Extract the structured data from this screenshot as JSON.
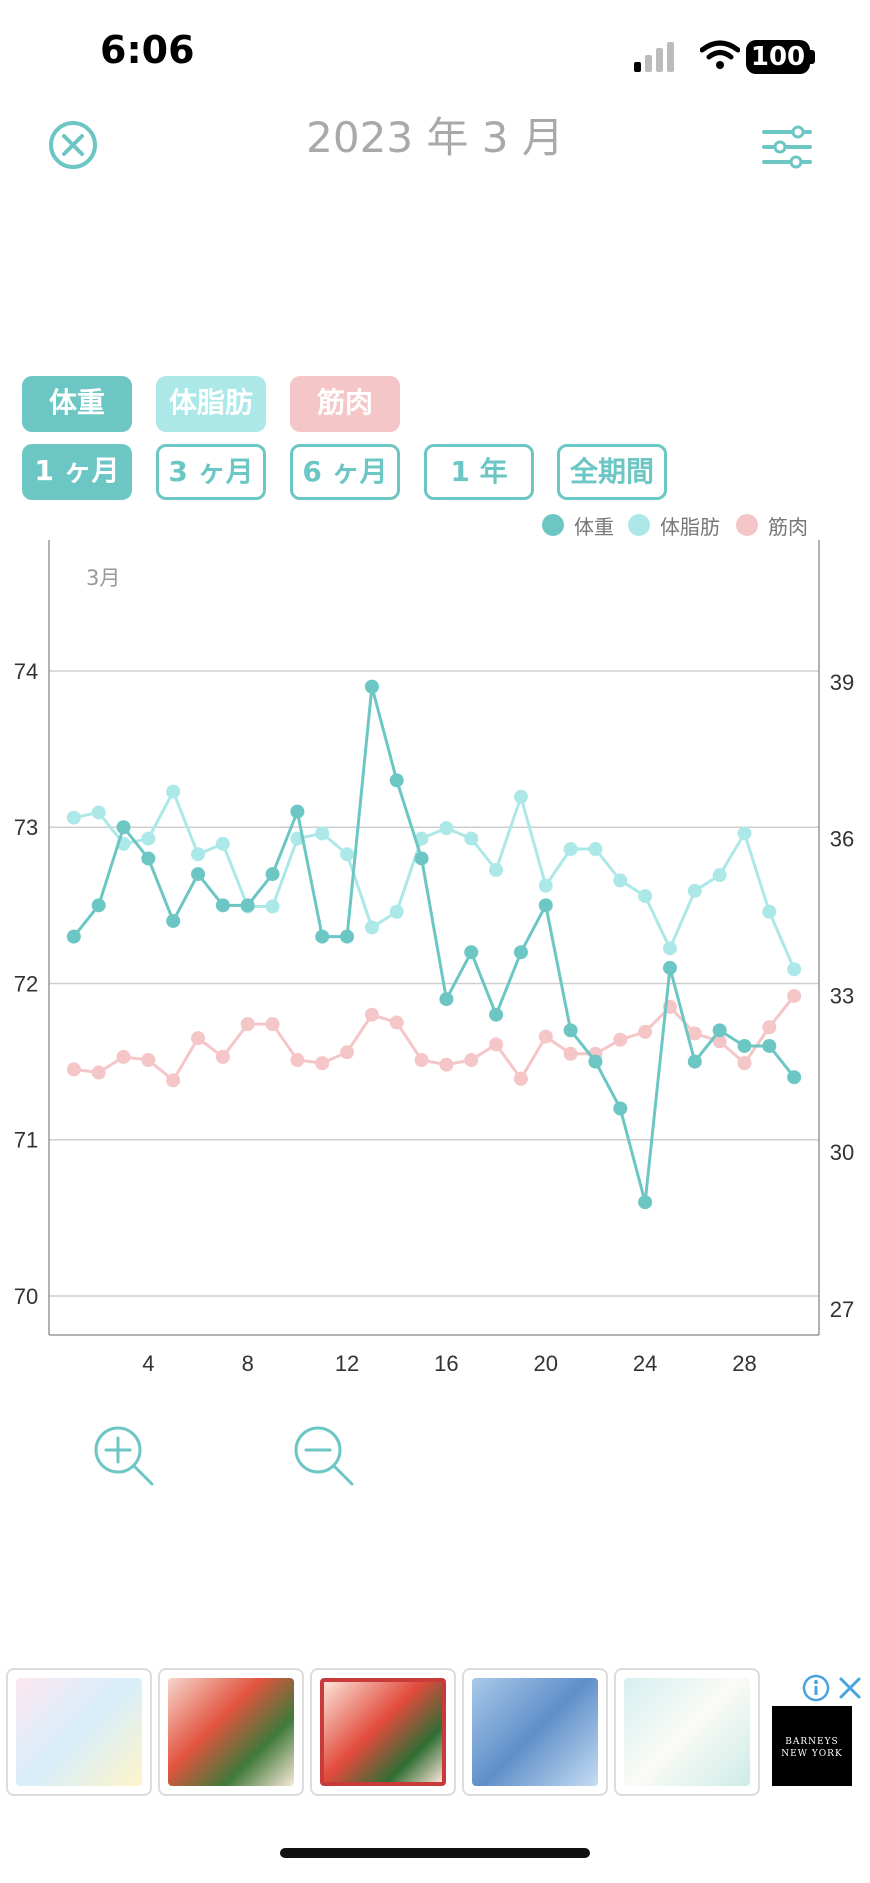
{
  "status_bar": {
    "time": "6:06",
    "battery": "100"
  },
  "header": {
    "title": "2023 年 3 月",
    "close_icon": "close-circle-icon",
    "filter_icon": "sliders-icon"
  },
  "metric_toggles": [
    {
      "label": "体重",
      "color": "#6cc7c4"
    },
    {
      "label": "体脂肪",
      "color": "#ade8e9"
    },
    {
      "label": "筋肉",
      "color": "#f5c6c8"
    }
  ],
  "period_buttons": [
    {
      "label": "1 ヶ月",
      "active": true
    },
    {
      "label": "3 ヶ月",
      "active": false
    },
    {
      "label": "6 ヶ月",
      "active": false
    },
    {
      "label": "1 年",
      "active": false
    },
    {
      "label": "全期間",
      "active": false
    }
  ],
  "chart_data": {
    "type": "line",
    "month_label": "3月",
    "x": [
      1,
      2,
      3,
      4,
      5,
      6,
      7,
      8,
      9,
      10,
      11,
      12,
      13,
      14,
      15,
      16,
      17,
      18,
      19,
      20,
      21,
      22,
      23,
      24,
      25,
      26,
      27,
      28,
      29,
      30
    ],
    "x_ticks": [
      4,
      8,
      12,
      16,
      20,
      24,
      28
    ],
    "xlim": [
      0,
      31
    ],
    "y_left": {
      "ticks": [
        70,
        71,
        72,
        73,
        74
      ],
      "lim": [
        69.75,
        74.8
      ]
    },
    "y_right": {
      "ticks": [
        27,
        30,
        33,
        36,
        39
      ],
      "lim": [
        26.5,
        41.6
      ]
    },
    "legend_position": "top-right",
    "series": [
      {
        "name": "体重",
        "color": "#6cc7c4",
        "axis": "left",
        "values": [
          72.3,
          72.5,
          73.0,
          72.8,
          72.4,
          72.7,
          72.5,
          72.5,
          72.7,
          73.1,
          72.3,
          72.3,
          73.9,
          73.3,
          72.8,
          71.9,
          72.2,
          71.8,
          72.2,
          72.5,
          71.7,
          71.5,
          71.2,
          70.6,
          72.1,
          71.5,
          71.7,
          71.6,
          71.6,
          71.4
        ]
      },
      {
        "name": "体脂肪",
        "color": "#ade8e9",
        "axis": "right",
        "values": [
          36.4,
          36.5,
          35.9,
          36.0,
          36.9,
          35.7,
          35.9,
          34.7,
          34.7,
          36.0,
          36.1,
          35.7,
          34.3,
          34.6,
          36.0,
          36.2,
          36.0,
          35.4,
          36.8,
          35.1,
          35.8,
          35.8,
          35.2,
          34.9,
          33.9,
          35.0,
          35.3,
          36.1,
          34.6,
          33.5
        ]
      },
      {
        "name": "筋肉",
        "color": "#f5c6c8",
        "axis": "left",
        "values": [
          71.45,
          71.43,
          71.53,
          71.51,
          71.38,
          71.65,
          71.53,
          71.74,
          71.74,
          71.51,
          71.49,
          71.56,
          71.8,
          71.75,
          71.51,
          71.48,
          71.51,
          71.61,
          71.39,
          71.66,
          71.55,
          71.55,
          71.64,
          71.69,
          71.85,
          71.68,
          71.63,
          71.49,
          71.72,
          71.92
        ]
      }
    ]
  },
  "zoom": {
    "in_icon": "zoom-in-icon",
    "out_icon": "zoom-out-icon"
  },
  "ad": {
    "brand": "BARNEYS NEW YORK",
    "info_icon": "info-icon",
    "close_icon": "close-icon"
  }
}
